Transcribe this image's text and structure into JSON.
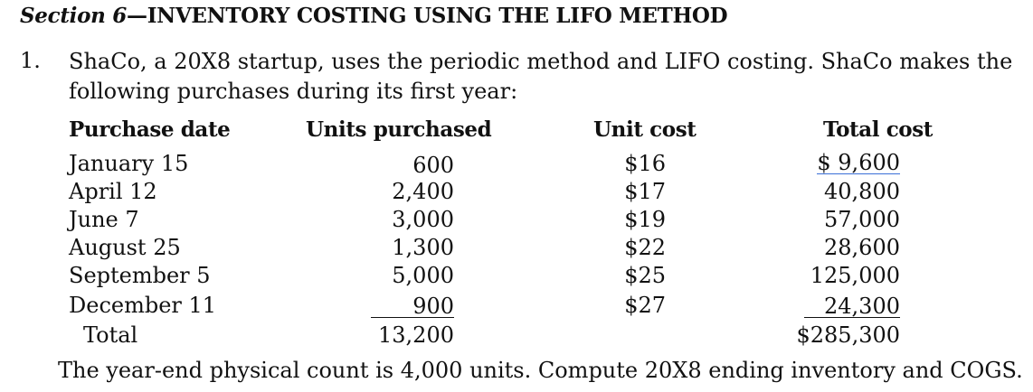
{
  "section_label": "Section 6",
  "section_dash": "—",
  "section_title": "INVENTORY COSTING USING THE LIFO METHOD",
  "question_number": "1.",
  "question_text": "ShaCo, a 20X8 startup, uses the periodic method and LIFO costing. ShaCo makes the following purchases during its first year:",
  "table": {
    "headers": {
      "purchase_date": "Purchase date",
      "units_purchased": "Units purchased",
      "unit_cost": "Unit cost",
      "total_cost": "Total cost"
    },
    "rows": [
      {
        "date": "January 15",
        "units": "600",
        "unit_cost": "$16",
        "total_cost": "$ 9,600"
      },
      {
        "date": "April 12",
        "units": "2,400",
        "unit_cost": "$17",
        "total_cost": "40,800"
      },
      {
        "date": "June 7",
        "units": "3,000",
        "unit_cost": "$19",
        "total_cost": "57,000"
      },
      {
        "date": "August 25",
        "units": "1,300",
        "unit_cost": "$22",
        "total_cost": "28,600"
      },
      {
        "date": "September 5",
        "units": "5,000",
        "unit_cost": "$25",
        "total_cost": "125,000"
      },
      {
        "date": "December 11",
        "units": "900",
        "unit_cost": "$27",
        "total_cost": "24,300"
      }
    ],
    "total": {
      "label": "Total",
      "units": "13,200",
      "total_cost": "$285,300"
    }
  },
  "footer_text": "The year-end physical count is 4,000 units. Compute 20X8 ending inventory and COGS."
}
